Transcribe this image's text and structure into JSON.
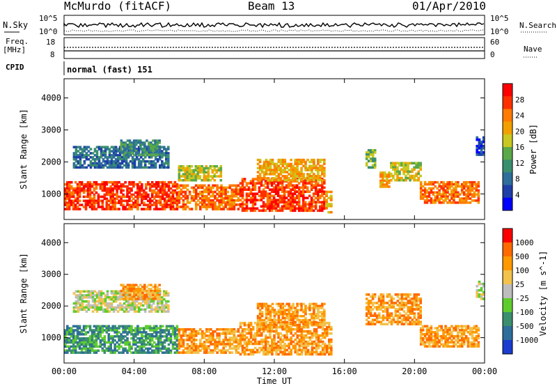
{
  "header": {
    "station": "McMurdo (fitACF)",
    "beam": "Beam 13",
    "date": "01/Apr/2010"
  },
  "noise_panel": {
    "left_label": "N.Sky",
    "right_label": "N.Search",
    "left_ticks": [
      "10^5",
      "10^0"
    ],
    "right_ticks": [
      "10^5",
      "10^0"
    ]
  },
  "freq_panel": {
    "left_label_1": "Freq.",
    "left_label_2": "[MHz]",
    "right_label": "Nave",
    "left_ticks": [
      "18",
      "8"
    ],
    "right_ticks": [
      "60",
      "0"
    ]
  },
  "cpid": {
    "label": "CPID",
    "value": "normal (fast) 151"
  },
  "colors": {
    "power_scale": [
      "#0000ff",
      "#1e3fa8",
      "#2e6e9a",
      "#3a8f6e",
      "#5aa84a",
      "#c8c820",
      "#f2a000",
      "#ff7a00",
      "#ff3000",
      "#ff0000"
    ],
    "velocity_scale": [
      "#1a3ccf",
      "#2e6e9a",
      "#3a8f6e",
      "#5fcc2e",
      "#bdbdbd",
      "#f2c24c",
      "#ff9900",
      "#ff6a00",
      "#ff0000"
    ]
  },
  "chart_data": [
    {
      "type": "heatmap",
      "name": "power",
      "ylabel": "Slant Range [km]",
      "ylim": [
        200,
        4600
      ],
      "y_ticks": [
        "1000",
        "2000",
        "3000",
        "4000"
      ],
      "colorbar": {
        "label": "Power [dB]",
        "ticks": [
          "4",
          "8",
          "12",
          "16",
          "20",
          "24",
          "28"
        ]
      },
      "regions": [
        {
          "t0": 0.0,
          "t1": 6.5,
          "r0": 500,
          "r1": 1400,
          "level": 8
        },
        {
          "t0": 6.5,
          "t1": 10.0,
          "r0": 500,
          "r1": 1300,
          "level": 7
        },
        {
          "t0": 10.0,
          "t1": 14.9,
          "r0": 450,
          "r1": 1500,
          "level": 8
        },
        {
          "t0": 14.9,
          "t1": 15.3,
          "r0": 400,
          "r1": 1100,
          "level": 6
        },
        {
          "t0": 0.5,
          "t1": 6.0,
          "r0": 1800,
          "r1": 2500,
          "level": 2
        },
        {
          "t0": 3.2,
          "t1": 5.5,
          "r0": 2200,
          "r1": 2700,
          "level": 3
        },
        {
          "t0": 6.5,
          "t1": 9.0,
          "r0": 1400,
          "r1": 1900,
          "level": 5
        },
        {
          "t0": 11.0,
          "t1": 14.9,
          "r0": 1400,
          "r1": 2100,
          "level": 6
        },
        {
          "t0": 17.2,
          "t1": 17.8,
          "r0": 1800,
          "r1": 2400,
          "level": 4
        },
        {
          "t0": 18.0,
          "t1": 18.6,
          "r0": 1200,
          "r1": 1700,
          "level": 6
        },
        {
          "t0": 18.6,
          "t1": 20.4,
          "r0": 1400,
          "r1": 2000,
          "level": 5
        },
        {
          "t0": 20.3,
          "t1": 23.7,
          "r0": 700,
          "r1": 1400,
          "level": 7
        },
        {
          "t0": 23.5,
          "t1": 24.0,
          "r0": 2200,
          "r1": 2800,
          "level": 1
        }
      ]
    },
    {
      "type": "heatmap",
      "name": "velocity",
      "xlabel": "Time UT",
      "ylabel": "Slant Range [km]",
      "xlim": [
        0,
        24
      ],
      "x_ticks": [
        "00:00",
        "04:00",
        "08:00",
        "12:00",
        "16:00",
        "20:00",
        "00:00"
      ],
      "ylim": [
        200,
        4600
      ],
      "y_ticks": [
        "1000",
        "2000",
        "3000",
        "4000"
      ],
      "colorbar": {
        "label": "Velocity [m s^-1]",
        "ticks": [
          "1000",
          "500",
          "100",
          "25",
          "-25",
          "-100",
          "-500",
          "-1000"
        ]
      },
      "regions": [
        {
          "t0": 0.0,
          "t1": 6.5,
          "r0": 500,
          "r1": 1400,
          "level": 2
        },
        {
          "t0": 6.5,
          "t1": 10.0,
          "r0": 500,
          "r1": 1300,
          "level": 6
        },
        {
          "t0": 10.0,
          "t1": 15.3,
          "r0": 450,
          "r1": 1500,
          "level": 6
        },
        {
          "t0": 0.5,
          "t1": 6.0,
          "r0": 1800,
          "r1": 2500,
          "level": 4
        },
        {
          "t0": 3.2,
          "t1": 5.5,
          "r0": 2200,
          "r1": 2700,
          "level": 6
        },
        {
          "t0": 11.0,
          "t1": 14.9,
          "r0": 1400,
          "r1": 2100,
          "level": 6
        },
        {
          "t0": 17.2,
          "t1": 20.4,
          "r0": 1400,
          "r1": 2400,
          "level": 6
        },
        {
          "t0": 20.3,
          "t1": 23.7,
          "r0": 700,
          "r1": 1400,
          "level": 6
        },
        {
          "t0": 23.5,
          "t1": 24.0,
          "r0": 2200,
          "r1": 2800,
          "level": 4
        }
      ]
    }
  ]
}
